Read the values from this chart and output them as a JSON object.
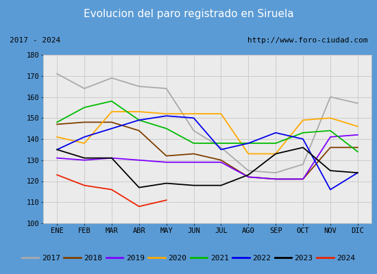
{
  "title": "Evolucion del paro registrado en Siruela",
  "subtitle_left": "2017 - 2024",
  "subtitle_right": "http://www.foro-ciudad.com",
  "title_bg_color": "#5b9bd5",
  "title_text_color": "white",
  "months": [
    "ENE",
    "FEB",
    "MAR",
    "ABR",
    "MAY",
    "JUN",
    "JUL",
    "AGO",
    "SEP",
    "OCT",
    "NOV",
    "DIC"
  ],
  "ylim": [
    100,
    180
  ],
  "yticks": [
    100,
    110,
    120,
    130,
    140,
    150,
    160,
    170,
    180
  ],
  "series": {
    "2017": {
      "color": "#aaaaaa",
      "data": [
        171,
        164,
        169,
        165,
        164,
        144,
        136,
        125,
        124,
        128,
        160,
        157
      ]
    },
    "2018": {
      "color": "#7f3f00",
      "data": [
        147,
        148,
        148,
        144,
        132,
        133,
        130,
        122,
        121,
        121,
        136,
        136
      ]
    },
    "2019": {
      "color": "#7f00ff",
      "data": [
        131,
        130,
        131,
        130,
        129,
        129,
        129,
        122,
        121,
        121,
        141,
        142
      ]
    },
    "2020": {
      "color": "#ffaa00",
      "data": [
        141,
        138,
        153,
        153,
        152,
        152,
        152,
        133,
        133,
        149,
        150,
        146
      ]
    },
    "2021": {
      "color": "#00bb00",
      "data": [
        148,
        155,
        158,
        149,
        145,
        138,
        138,
        138,
        138,
        143,
        144,
        134
      ]
    },
    "2022": {
      "color": "#0000ee",
      "data": [
        135,
        141,
        145,
        149,
        151,
        150,
        135,
        138,
        143,
        140,
        116,
        124
      ]
    },
    "2023": {
      "color": "#000000",
      "data": [
        135,
        131,
        131,
        117,
        119,
        118,
        118,
        123,
        133,
        136,
        125,
        124
      ]
    },
    "2024": {
      "color": "#ee2200",
      "data": [
        123,
        118,
        116,
        108,
        111,
        null,
        null,
        null,
        null,
        null,
        null,
        null
      ]
    }
  },
  "grid_color": "#cccccc",
  "plot_bg_color": "#ebebeb",
  "border_color": "#5b9bd5",
  "figsize": [
    5.5,
    4.0
  ],
  "dpi": 100
}
